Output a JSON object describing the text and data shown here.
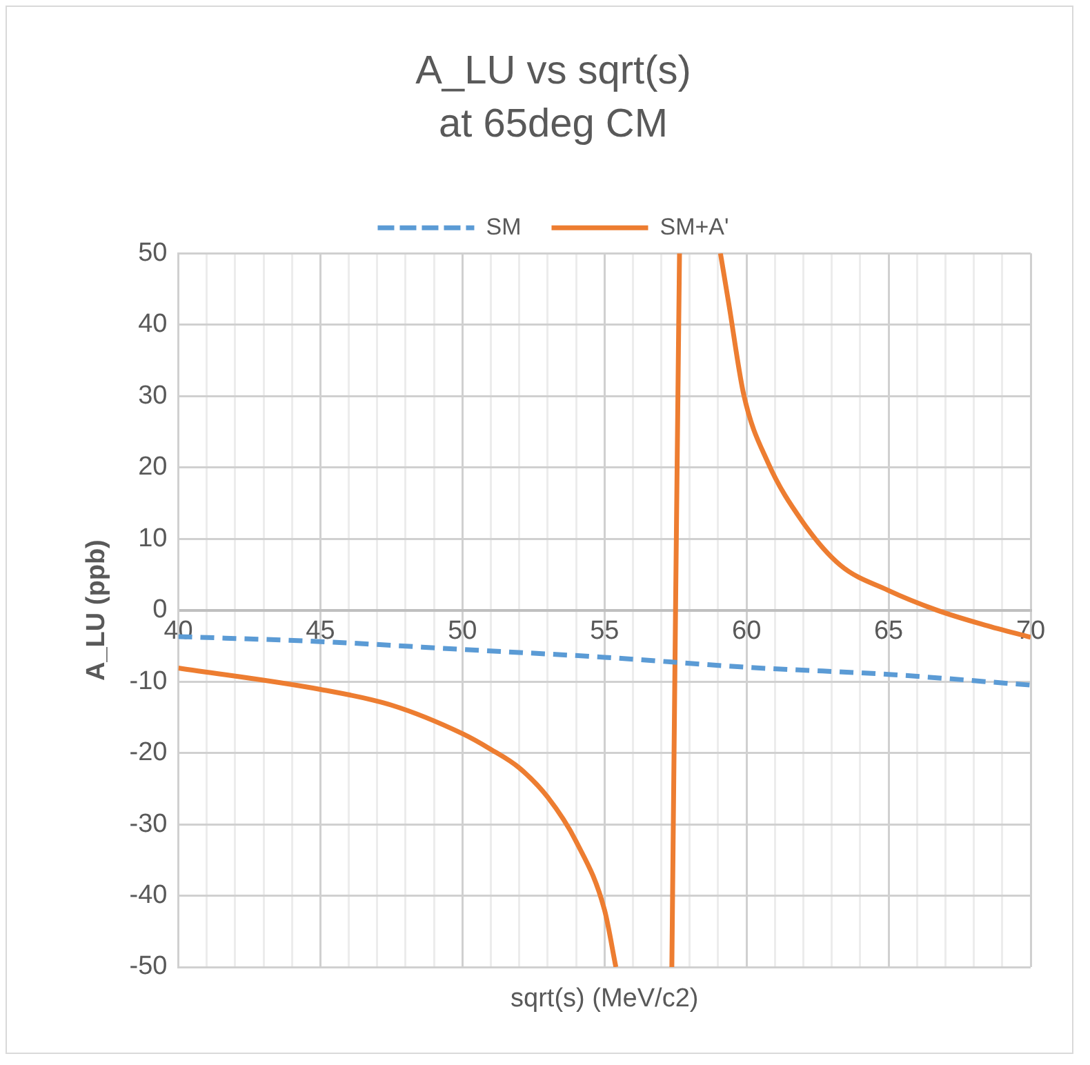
{
  "chart_data": {
    "type": "line",
    "title": "A_LU vs sqrt(s)",
    "subtitle": "at 65deg CM",
    "xlabel": "sqrt(s) (MeV/c2)",
    "ylabel": "A_LU (ppb)",
    "xlim": [
      40,
      70
    ],
    "ylim": [
      -50,
      50
    ],
    "xticks": [
      40,
      {
        "value": 41,
        "label": null
      },
      {
        "value": 42,
        "label": null
      },
      {
        "value": 43,
        "label": null
      },
      {
        "value": 44,
        "label": null
      },
      45,
      {
        "value": 46,
        "label": null
      },
      {
        "value": 47,
        "label": null
      },
      {
        "value": 48,
        "label": null
      },
      {
        "value": 49,
        "label": null
      },
      50,
      {
        "value": 51,
        "label": null
      },
      {
        "value": 52,
        "label": null
      },
      {
        "value": 53,
        "label": null
      },
      {
        "value": 54,
        "label": null
      },
      55,
      {
        "value": 56,
        "label": null
      },
      {
        "value": 57,
        "label": null
      },
      {
        "value": 58,
        "label": null
      },
      {
        "value": 59,
        "label": null
      },
      60,
      {
        "value": 61,
        "label": null
      },
      {
        "value": 62,
        "label": null
      },
      {
        "value": 63,
        "label": null
      },
      {
        "value": 64,
        "label": null
      },
      65,
      {
        "value": 66,
        "label": null
      },
      {
        "value": 67,
        "label": null
      },
      {
        "value": 68,
        "label": null
      },
      {
        "value": 69,
        "label": null
      },
      70
    ],
    "yticks": [
      -50,
      -40,
      -30,
      -20,
      -10,
      0,
      10,
      20,
      30,
      40,
      50
    ],
    "grid": true,
    "legend": "top",
    "marker": "none",
    "series": [
      {
        "name": "SM",
        "color": "#5b9bd5",
        "line_style": "dashed",
        "x": [
          40,
          45,
          50,
          55,
          60,
          65,
          70
        ],
        "values": [
          -3.7,
          -4.4,
          -5.5,
          -6.6,
          -8.0,
          -9.0,
          -10.5
        ]
      },
      {
        "name": "SM+A'",
        "color": "#ed7d31",
        "line_style": "solid",
        "x": [
          40,
          45,
          47.5,
          50,
          51,
          52,
          53,
          54,
          55,
          55.4,
          56.5,
          57.37,
          57.5,
          57.64,
          58.5,
          59.08,
          59.38,
          59.9,
          60.75,
          61.95,
          63.3,
          64.97,
          66.7,
          68.4,
          70
        ],
        "values": [
          -8.1,
          -11.1,
          -13.3,
          -17.3,
          -19.5,
          -22.1,
          -26.2,
          -32.4,
          -42,
          -50,
          null,
          -50,
          0,
          50,
          null,
          50,
          42.8,
          30.2,
          20.7,
          12.5,
          6.3,
          2.8,
          0,
          -2.1,
          -3.8
        ]
      }
    ]
  }
}
